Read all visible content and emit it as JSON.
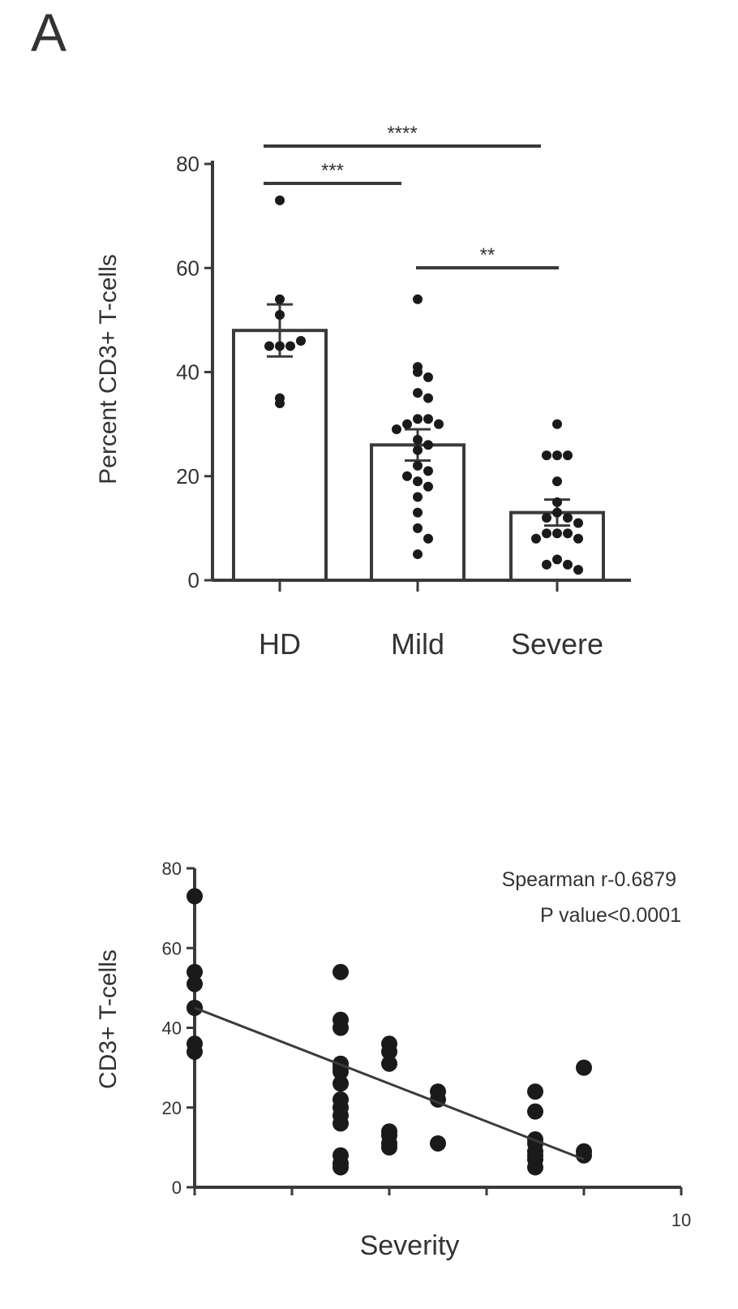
{
  "figure": {
    "panel_label": "A"
  },
  "chart_data": [
    {
      "type": "bar",
      "ylabel": "Percent CD3+ T-cells",
      "xlabel": "",
      "ylim": [
        0,
        80
      ],
      "yticks": [
        "0",
        "20",
        "40",
        "60",
        "80"
      ],
      "categories": [
        "HD",
        "Mild",
        "Severe"
      ],
      "values": [
        48,
        26,
        13
      ],
      "errors": [
        5,
        3,
        2.5
      ],
      "points": [
        [
          73,
          54,
          51,
          45,
          45,
          45,
          46,
          35,
          34
        ],
        [
          54,
          41,
          40,
          39,
          36,
          35,
          31,
          31,
          30,
          30,
          29,
          27,
          26,
          25,
          22,
          21,
          20,
          19,
          18,
          16,
          13,
          10,
          8,
          5
        ],
        [
          30,
          24,
          24,
          24,
          19,
          15,
          13,
          12,
          12,
          11,
          9,
          9,
          9,
          8,
          8,
          4,
          3,
          3,
          2
        ]
      ],
      "significance": [
        {
          "from": 0,
          "to": 2,
          "label": "****"
        },
        {
          "from": 0,
          "to": 1,
          "label": "***"
        },
        {
          "from": 1,
          "to": 2,
          "label": "**"
        }
      ]
    },
    {
      "type": "scatter",
      "xlabel": "Severity",
      "ylabel": "CD3+ T-cells",
      "xlim": [
        0,
        10
      ],
      "ylim": [
        0,
        80
      ],
      "xticks": [
        "10"
      ],
      "yticks": [
        "0",
        "20",
        "40",
        "60",
        "80"
      ],
      "x": [
        0,
        0,
        0,
        0,
        0,
        0,
        0,
        3,
        3,
        3,
        3,
        3,
        3,
        3,
        3,
        3,
        3,
        3,
        3,
        3,
        3,
        4,
        4,
        4,
        4,
        4,
        4,
        4,
        5,
        5,
        5,
        7,
        7,
        7,
        7,
        7,
        7,
        7,
        7,
        8,
        8,
        8
      ],
      "y": [
        73,
        54,
        51,
        45,
        45,
        36,
        34,
        54,
        42,
        40,
        31,
        30,
        29,
        26,
        22,
        20,
        18,
        16,
        8,
        6,
        5,
        36,
        34,
        31,
        14,
        13,
        11,
        10,
        24,
        22,
        11,
        24,
        19,
        12,
        11,
        9,
        8,
        7,
        5,
        30,
        9,
        8
      ],
      "fit_line": {
        "x": [
          0,
          8
        ],
        "y": [
          45,
          7
        ]
      },
      "annotations": [
        "Spearman r-0.6879",
        "P value<0.0001"
      ]
    }
  ]
}
